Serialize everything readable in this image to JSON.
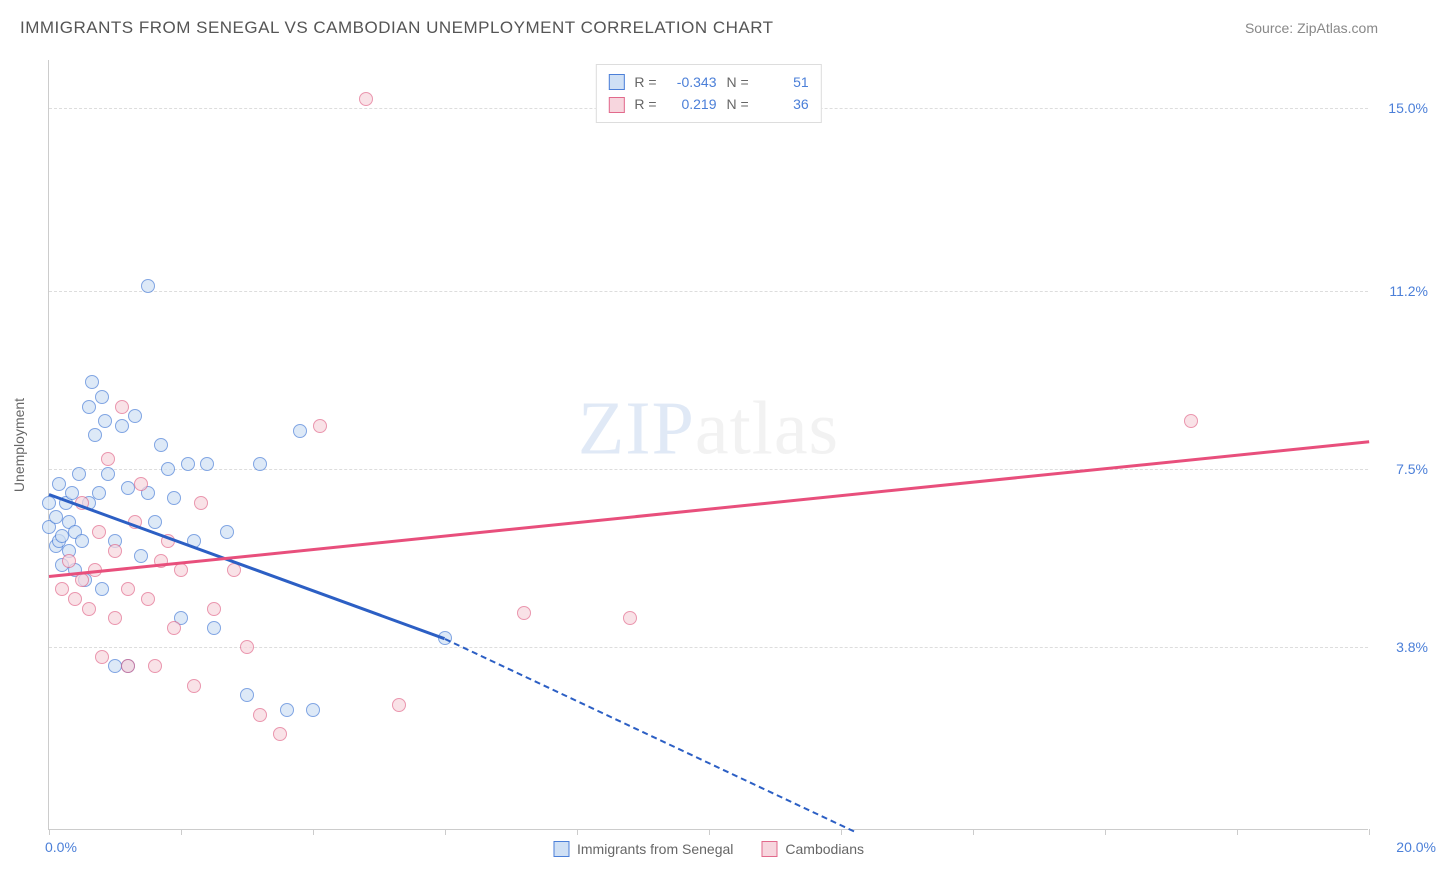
{
  "title": "IMMIGRANTS FROM SENEGAL VS CAMBODIAN UNEMPLOYMENT CORRELATION CHART",
  "source_label": "Source: ZipAtlas.com",
  "watermark": {
    "zip": "ZIP",
    "atlas": "atlas"
  },
  "chart": {
    "type": "scatter",
    "background_color": "#ffffff",
    "grid_color": "#dddddd",
    "axis_color": "#cccccc",
    "label_color": "#666666",
    "tick_label_color": "#4b7fd8",
    "xlim": [
      0,
      20
    ],
    "ylim": [
      0,
      16
    ],
    "xticks": [
      0,
      2,
      4,
      6,
      8,
      10,
      12,
      14,
      16,
      18,
      20
    ],
    "x_tick_labels": {
      "min": "0.0%",
      "max": "20.0%"
    },
    "y_gridlines": [
      3.8,
      7.5,
      11.2,
      15.0
    ],
    "y_tick_labels": [
      "3.8%",
      "7.5%",
      "11.2%",
      "15.0%"
    ],
    "ylabel": "Unemployment",
    "legend_top": [
      {
        "swatch_fill": "#cfe0f5",
        "swatch_border": "#4b7fd8",
        "r_label": "R =",
        "r_val": "-0.343",
        "n_label": "N =",
        "n_val": "51"
      },
      {
        "swatch_fill": "#f7d6de",
        "swatch_border": "#e26a8c",
        "r_label": "R =",
        "r_val": "0.219",
        "n_label": "N =",
        "n_val": "36"
      }
    ],
    "legend_bottom": [
      {
        "swatch_fill": "#cfe0f5",
        "swatch_border": "#4b7fd8",
        "label": "Immigrants from Senegal"
      },
      {
        "swatch_fill": "#f7d6de",
        "swatch_border": "#e26a8c",
        "label": "Cambodians"
      }
    ],
    "series": [
      {
        "name": "senegal",
        "marker_fill": "#cfe0f5",
        "marker_border": "#4b7fd8",
        "marker_size": 14,
        "trend": {
          "color": "#2c5fc4",
          "width": 3,
          "x1": 0,
          "y1": 7.0,
          "x2": 6.0,
          "y2": 4.0,
          "dash_to_x": 12.2,
          "dash_to_y": 0
        },
        "points": [
          [
            0.0,
            6.3
          ],
          [
            0.0,
            6.8
          ],
          [
            0.1,
            5.9
          ],
          [
            0.1,
            6.5
          ],
          [
            0.15,
            6.0
          ],
          [
            0.15,
            7.2
          ],
          [
            0.2,
            5.5
          ],
          [
            0.2,
            6.1
          ],
          [
            0.25,
            6.8
          ],
          [
            0.3,
            5.8
          ],
          [
            0.3,
            6.4
          ],
          [
            0.35,
            7.0
          ],
          [
            0.4,
            5.4
          ],
          [
            0.4,
            6.2
          ],
          [
            0.45,
            7.4
          ],
          [
            0.5,
            6.0
          ],
          [
            0.55,
            5.2
          ],
          [
            0.6,
            6.8
          ],
          [
            0.6,
            8.8
          ],
          [
            0.65,
            9.3
          ],
          [
            0.7,
            8.2
          ],
          [
            0.75,
            7.0
          ],
          [
            0.8,
            5.0
          ],
          [
            0.8,
            9.0
          ],
          [
            0.85,
            8.5
          ],
          [
            0.9,
            7.4
          ],
          [
            1.0,
            6.0
          ],
          [
            1.0,
            3.4
          ],
          [
            1.1,
            8.4
          ],
          [
            1.2,
            7.1
          ],
          [
            1.2,
            3.4
          ],
          [
            1.3,
            8.6
          ],
          [
            1.4,
            5.7
          ],
          [
            1.5,
            7.0
          ],
          [
            1.5,
            11.3
          ],
          [
            1.6,
            6.4
          ],
          [
            1.7,
            8.0
          ],
          [
            1.8,
            7.5
          ],
          [
            1.9,
            6.9
          ],
          [
            2.0,
            4.4
          ],
          [
            2.1,
            7.6
          ],
          [
            2.2,
            6.0
          ],
          [
            2.4,
            7.6
          ],
          [
            2.5,
            4.2
          ],
          [
            2.7,
            6.2
          ],
          [
            3.0,
            2.8
          ],
          [
            3.2,
            7.6
          ],
          [
            3.6,
            2.5
          ],
          [
            3.8,
            8.3
          ],
          [
            4.0,
            2.5
          ],
          [
            6.0,
            4.0
          ]
        ]
      },
      {
        "name": "cambodians",
        "marker_fill": "#f7d6de",
        "marker_border": "#e26a8c",
        "marker_size": 14,
        "trend": {
          "color": "#e84f7c",
          "width": 2.5,
          "x1": 0,
          "y1": 5.3,
          "x2": 20,
          "y2": 8.1
        },
        "points": [
          [
            0.2,
            5.0
          ],
          [
            0.3,
            5.6
          ],
          [
            0.4,
            4.8
          ],
          [
            0.5,
            5.2
          ],
          [
            0.5,
            6.8
          ],
          [
            0.6,
            4.6
          ],
          [
            0.7,
            5.4
          ],
          [
            0.75,
            6.2
          ],
          [
            0.8,
            3.6
          ],
          [
            0.9,
            7.7
          ],
          [
            1.0,
            4.4
          ],
          [
            1.0,
            5.8
          ],
          [
            1.1,
            8.8
          ],
          [
            1.2,
            5.0
          ],
          [
            1.2,
            3.4
          ],
          [
            1.3,
            6.4
          ],
          [
            1.4,
            7.2
          ],
          [
            1.5,
            4.8
          ],
          [
            1.6,
            3.4
          ],
          [
            1.7,
            5.6
          ],
          [
            1.8,
            6.0
          ],
          [
            1.9,
            4.2
          ],
          [
            2.0,
            5.4
          ],
          [
            2.2,
            3.0
          ],
          [
            2.3,
            6.8
          ],
          [
            2.5,
            4.6
          ],
          [
            2.8,
            5.4
          ],
          [
            3.0,
            3.8
          ],
          [
            3.2,
            2.4
          ],
          [
            3.5,
            2.0
          ],
          [
            4.1,
            8.4
          ],
          [
            4.8,
            15.2
          ],
          [
            5.3,
            2.6
          ],
          [
            7.2,
            4.5
          ],
          [
            8.8,
            4.4
          ],
          [
            17.3,
            8.5
          ]
        ]
      }
    ]
  }
}
